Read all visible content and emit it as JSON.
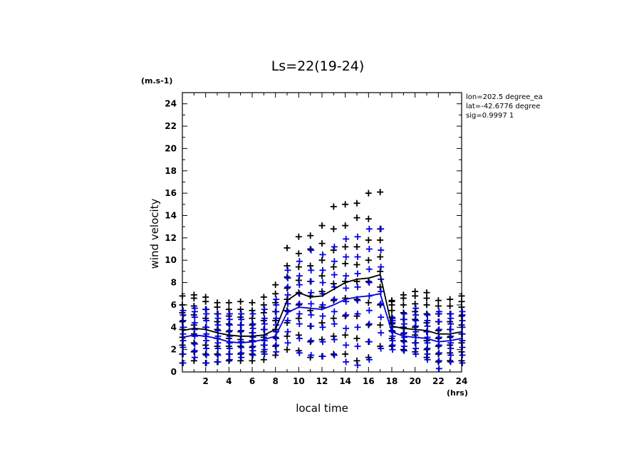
{
  "chart_data": {
    "type": "scatter",
    "title": "Ls=22(19-24)",
    "ylabel": "wind velocity",
    "yunit": "(m.s-1)",
    "xlabel": "local time",
    "xunit": "(hrs)",
    "xlim": [
      0,
      24
    ],
    "ylim": [
      0,
      25
    ],
    "x_ticks": [
      "2",
      "4",
      "6",
      "8",
      "10",
      "12",
      "14",
      "16",
      "18",
      "20",
      "22",
      "24"
    ],
    "y_ticks": [
      "0",
      "2",
      "4",
      "6",
      "8",
      "10",
      "12",
      "14",
      "16",
      "18",
      "20",
      "22",
      "24"
    ],
    "annotations": [
      "lon=202.5 degree_ea",
      "lat=-42.6776 degree",
      "sig=0.9997 1"
    ],
    "colors": {
      "series_black": "#000000",
      "series_blue": "#0000e6"
    },
    "series": [
      {
        "color": "black",
        "x": [
          0,
          1,
          2,
          3,
          4,
          5,
          6,
          7,
          8,
          9,
          10,
          11,
          12,
          13,
          14,
          15,
          16,
          17,
          18,
          19,
          20,
          21,
          22,
          23,
          24
        ],
        "mean": [
          3.7,
          3.9,
          3.8,
          3.5,
          3.3,
          3.2,
          3.2,
          3.3,
          3.8,
          6.4,
          7.1,
          6.7,
          6.8,
          7.4,
          8.0,
          8.3,
          8.4,
          8.7,
          4.1,
          3.9,
          3.8,
          3.7,
          3.4,
          3.4,
          3.6
        ],
        "points": [
          [
            0.8,
            1.6,
            2.4,
            3.1,
            3.8,
            4.5,
            5.3,
            6.0,
            6.8
          ],
          [
            1.0,
            1.8,
            2.6,
            3.4,
            4.2,
            5.1,
            5.9,
            6.6,
            6.9
          ],
          [
            0.8,
            1.6,
            2.4,
            3.2,
            4.0,
            4.8,
            5.6,
            6.3,
            6.7
          ],
          [
            0.9,
            1.6,
            2.3,
            3.0,
            3.8,
            4.5,
            5.2,
            5.8,
            6.2
          ],
          [
            1.0,
            1.6,
            2.3,
            3.0,
            3.6,
            4.3,
            5.0,
            5.6,
            6.2
          ],
          [
            1.0,
            1.6,
            2.3,
            2.9,
            3.6,
            4.2,
            4.9,
            5.6,
            6.3
          ],
          [
            1.0,
            1.6,
            2.2,
            2.8,
            3.5,
            4.2,
            4.8,
            5.5,
            6.2
          ],
          [
            1.1,
            1.8,
            2.4,
            3.1,
            3.8,
            4.6,
            5.3,
            6.0,
            6.7
          ],
          [
            1.5,
            2.3,
            3.1,
            3.8,
            4.6,
            5.4,
            6.2,
            7.0,
            7.8
          ],
          [
            2.0,
            3.2,
            4.4,
            5.5,
            6.5,
            7.5,
            8.5,
            9.5,
            11.1
          ],
          [
            1.9,
            3.3,
            4.8,
            6.0,
            7.1,
            8.2,
            9.4,
            10.6,
            12.1
          ],
          [
            1.3,
            2.7,
            4.1,
            5.5,
            6.8,
            8.1,
            9.5,
            11.0,
            12.2
          ],
          [
            1.4,
            2.9,
            4.4,
            5.8,
            7.2,
            8.6,
            10.0,
            11.5,
            13.1
          ],
          [
            1.6,
            3.2,
            4.8,
            6.4,
            7.9,
            9.4,
            10.9,
            12.8,
            14.8
          ],
          [
            1.6,
            3.3,
            5.0,
            6.6,
            8.1,
            9.7,
            11.2,
            13.1,
            15.0
          ],
          [
            1.0,
            3.0,
            5.0,
            6.5,
            8.1,
            9.6,
            11.2,
            13.8,
            15.1
          ],
          [
            1.3,
            2.7,
            4.2,
            6.2,
            8.1,
            10.0,
            11.8,
            13.7,
            16.0
          ],
          [
            2.3,
            4.2,
            6.0,
            7.6,
            9.0,
            10.3,
            11.8,
            12.8,
            16.1
          ],
          [
            2.3,
            3.0,
            3.7,
            4.3,
            4.9,
            5.5,
            6.0,
            6.4,
            6.3
          ],
          [
            2.0,
            2.8,
            3.4,
            4.0,
            4.7,
            5.3,
            6.0,
            6.6,
            6.9
          ],
          [
            1.8,
            2.6,
            3.3,
            4.0,
            4.7,
            5.4,
            6.1,
            6.8,
            7.2
          ],
          [
            1.3,
            2.0,
            2.8,
            3.6,
            4.4,
            5.2,
            6.0,
            6.6,
            7.1
          ],
          [
            0.9,
            1.6,
            2.3,
            3.0,
            3.7,
            4.5,
            5.2,
            5.9,
            6.4
          ],
          [
            1.0,
            1.7,
            2.4,
            3.1,
            3.8,
            4.5,
            5.2,
            5.9,
            6.5
          ],
          [
            1.0,
            1.8,
            2.6,
            3.4,
            4.2,
            5.0,
            5.8,
            6.3,
            6.8
          ]
        ]
      },
      {
        "color": "blue",
        "x": [
          0,
          1,
          2,
          3,
          4,
          5,
          6,
          7,
          8,
          9,
          10,
          11,
          12,
          13,
          14,
          15,
          16,
          17,
          18,
          19,
          20,
          21,
          22,
          23,
          24
        ],
        "mean": [
          3.1,
          3.3,
          3.2,
          3.0,
          2.7,
          2.6,
          2.7,
          2.9,
          3.2,
          5.3,
          5.8,
          5.7,
          5.6,
          6.0,
          6.5,
          6.7,
          6.8,
          7.0,
          3.6,
          3.2,
          3.1,
          3.0,
          2.7,
          2.8,
          3.0
        ],
        "points": [
          [
            0.8,
            1.6,
            2.2,
            2.8,
            3.4,
            4.0,
            4.6,
            5.1,
            5.5
          ],
          [
            1.3,
            1.9,
            2.5,
            3.2,
            3.8,
            4.4,
            4.9,
            5.4,
            5.7
          ],
          [
            0.8,
            1.5,
            2.1,
            2.8,
            3.4,
            4.0,
            4.6,
            5.2,
            5.6
          ],
          [
            0.9,
            1.5,
            2.1,
            2.6,
            3.2,
            3.7,
            4.2,
            4.8,
            5.2
          ],
          [
            1.1,
            1.6,
            2.1,
            2.6,
            3.2,
            3.7,
            4.2,
            4.7,
            5.2
          ],
          [
            1.3,
            1.7,
            2.2,
            2.7,
            3.2,
            3.7,
            4.2,
            4.7,
            5.2
          ],
          [
            1.5,
            1.9,
            2.3,
            2.7,
            3.1,
            3.5,
            3.9,
            4.3,
            5.2
          ],
          [
            1.6,
            2.0,
            2.4,
            2.8,
            3.3,
            3.8,
            4.3,
            4.8,
            5.6
          ],
          [
            1.8,
            2.4,
            3.0,
            3.6,
            4.2,
            4.8,
            5.4,
            6.0,
            6.5
          ],
          [
            2.6,
            3.6,
            4.6,
            5.4,
            6.1,
            6.9,
            7.6,
            8.4,
            9.1
          ],
          [
            1.7,
            3.0,
            4.3,
            5.2,
            6.1,
            7.0,
            7.8,
            8.6,
            9.9
          ],
          [
            1.5,
            2.8,
            4.1,
            5.1,
            6.1,
            7.1,
            8.1,
            9.1,
            10.9
          ],
          [
            1.4,
            2.7,
            4.0,
            5.0,
            6.0,
            7.0,
            8.0,
            9.1,
            10.5
          ],
          [
            1.5,
            2.9,
            4.3,
            5.4,
            6.5,
            7.6,
            8.7,
            9.9,
            11.2
          ],
          [
            0.9,
            2.4,
            3.9,
            5.1,
            6.3,
            7.5,
            8.6,
            10.3,
            11.9
          ],
          [
            0.6,
            2.3,
            4.0,
            5.2,
            6.4,
            7.6,
            8.8,
            10.3,
            12.1
          ],
          [
            1.1,
            2.7,
            4.3,
            5.5,
            6.8,
            8.0,
            9.2,
            11.0,
            12.8
          ],
          [
            2.1,
            3.5,
            4.9,
            6.1,
            7.2,
            8.3,
            9.4,
            10.9,
            12.8
          ],
          [
            2.0,
            2.4,
            2.8,
            3.2,
            3.6,
            4.0,
            4.4,
            4.8,
            4.6
          ],
          [
            1.9,
            2.3,
            2.7,
            3.1,
            3.5,
            3.9,
            4.3,
            4.7,
            5.2
          ],
          [
            1.6,
            2.1,
            2.6,
            3.1,
            3.6,
            4.1,
            4.6,
            5.1,
            5.7
          ],
          [
            1.1,
            1.6,
            2.1,
            2.6,
            3.1,
            3.6,
            4.1,
            4.6,
            5.1
          ],
          [
            0.3,
            1.0,
            1.7,
            2.4,
            3.1,
            3.8,
            4.5,
            5.2,
            5.4
          ],
          [
            0.9,
            1.5,
            2.1,
            2.6,
            3.2,
            3.8,
            4.3,
            4.8,
            5.2
          ],
          [
            0.8,
            1.5,
            2.2,
            2.8,
            3.4,
            4.0,
            4.6,
            5.1,
            5.4
          ]
        ]
      }
    ]
  }
}
